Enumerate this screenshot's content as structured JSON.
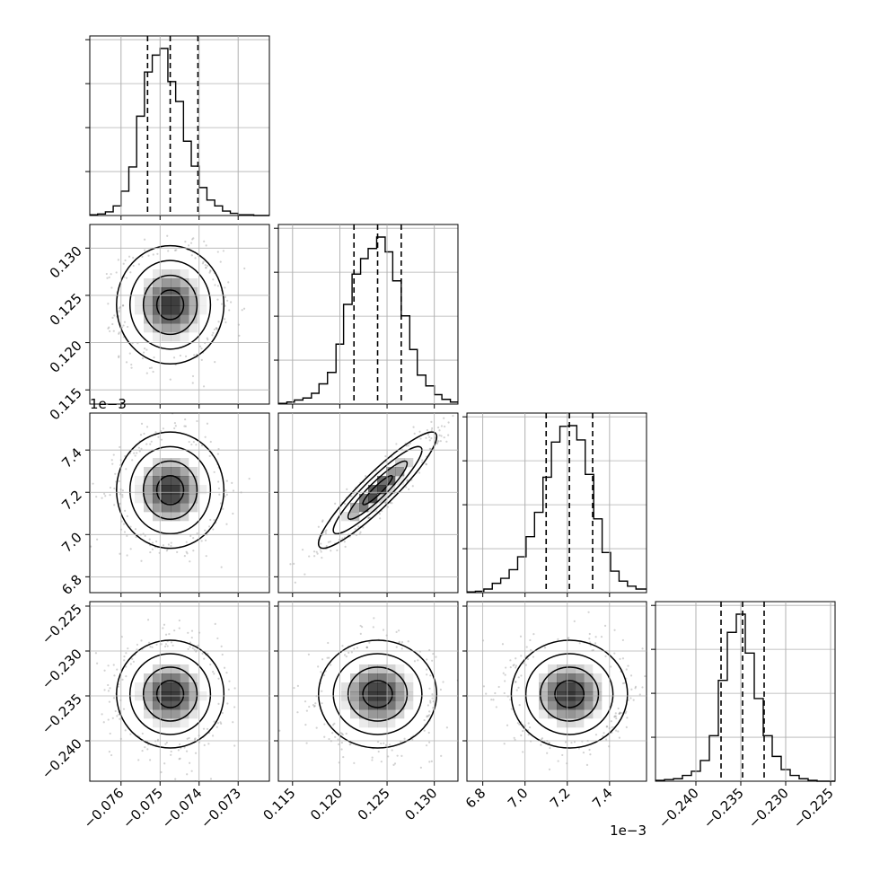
{
  "chart_data": {
    "type": "corner",
    "title": "",
    "grid": true,
    "parameters": [
      {
        "name": "",
        "range": [
          -0.0768,
          -0.0722
        ],
        "ticks": [
          -0.076,
          -0.075,
          -0.074,
          -0.073
        ],
        "tick_labels": [
          "−0.076",
          "−0.075",
          "−0.074",
          "−0.073"
        ],
        "offset_text": "",
        "quantiles": [
          -0.07532,
          -0.07474,
          -0.07403
        ],
        "median": -0.07474,
        "stdev": 0.00055
      },
      {
        "name": "",
        "range": [
          0.1135,
          0.1325
        ],
        "ticks": [
          0.115,
          0.12,
          0.125,
          0.13
        ],
        "tick_labels": [
          "0.115",
          "0.120",
          "0.125",
          "0.130"
        ],
        "offset_text": "",
        "quantiles": [
          0.1215,
          0.124,
          0.1265
        ],
        "median": 0.124,
        "stdev": 0.0025
      },
      {
        "name": "",
        "range": [
          6.725,
          7.575
        ],
        "ticks": [
          6.8,
          7.0,
          7.2,
          7.4
        ],
        "tick_labels": [
          "6.8",
          "7.0",
          "7.2",
          "7.4"
        ],
        "offset_text": "1e−3",
        "quantiles": [
          7.1,
          7.21,
          7.32
        ],
        "median": 7.21,
        "stdev": 0.11
      },
      {
        "name": "",
        "range": [
          -0.2445,
          -0.2245
        ],
        "ticks": [
          -0.24,
          -0.235,
          -0.23,
          -0.225
        ],
        "tick_labels": [
          "−0.240",
          "−0.235",
          "−0.230",
          "−0.225"
        ],
        "offset_text": "",
        "quantiles": [
          -0.2372,
          -0.2348,
          -0.2324
        ],
        "median": -0.2348,
        "stdev": 0.0024
      }
    ],
    "histograms": [
      {
        "param": 0,
        "bin_edges": [
          -0.0768,
          -0.0766,
          -0.0764,
          -0.0762,
          -0.076,
          -0.0758,
          -0.0756,
          -0.0754,
          -0.0752,
          -0.075,
          -0.0748,
          -0.0746,
          -0.0744,
          -0.0742,
          -0.074,
          -0.0738,
          -0.0736,
          -0.0734,
          -0.0732,
          -0.073,
          -0.0728,
          -0.0726,
          -0.0724,
          -0.0722
        ],
        "counts": [
          1,
          2,
          5,
          13,
          33,
          66,
          135,
          195,
          218,
          227,
          182,
          155,
          101,
          67,
          38,
          21,
          13,
          6,
          3,
          1,
          1,
          0,
          0
        ]
      },
      {
        "param": 1,
        "bin_edges": [
          0.1135,
          0.1144,
          0.1152,
          0.1161,
          0.117,
          0.1178,
          0.1187,
          0.1196,
          0.1204,
          0.1213,
          0.1222,
          0.123,
          0.1239,
          0.1248,
          0.1256,
          0.1265,
          0.1274,
          0.1282,
          0.1291,
          0.13,
          0.1308,
          0.1317,
          0.1325
        ],
        "counts": [
          1,
          3,
          6,
          9,
          16,
          30,
          47,
          89,
          148,
          193,
          216,
          231,
          248,
          226,
          183,
          131,
          81,
          43,
          27,
          14,
          7,
          3
        ]
      },
      {
        "param": 2,
        "bin_edges": [
          6.725,
          6.765,
          6.805,
          6.845,
          6.885,
          6.925,
          6.965,
          7.005,
          7.045,
          7.085,
          7.125,
          7.165,
          7.205,
          7.245,
          7.285,
          7.325,
          7.365,
          7.405,
          7.445,
          7.485,
          7.525,
          7.575
        ],
        "counts": [
          1,
          2,
          5,
          13,
          20,
          32,
          50,
          78,
          112,
          161,
          210,
          232,
          233,
          213,
          165,
          103,
          56,
          30,
          16,
          9,
          5
        ]
      },
      {
        "param": 3,
        "bin_edges": [
          -0.2445,
          -0.2435,
          -0.2425,
          -0.2415,
          -0.2405,
          -0.2395,
          -0.2385,
          -0.2375,
          -0.2365,
          -0.2355,
          -0.2345,
          -0.2335,
          -0.2325,
          -0.2315,
          -0.2305,
          -0.2295,
          -0.2285,
          -0.2275,
          -0.2265,
          -0.2255,
          -0.2245
        ],
        "counts": [
          1,
          2,
          3,
          7,
          12,
          25,
          55,
          122,
          180,
          202,
          155,
          100,
          55,
          30,
          14,
          7,
          3,
          1,
          0,
          0
        ]
      }
    ],
    "pairs": [
      {
        "x_param": 0,
        "y_param": 1,
        "correlation": 0.0
      },
      {
        "x_param": 0,
        "y_param": 2,
        "correlation": 0.0
      },
      {
        "x_param": 1,
        "y_param": 2,
        "correlation": 0.92
      },
      {
        "x_param": 0,
        "y_param": 3,
        "correlation": 0.0
      },
      {
        "x_param": 1,
        "y_param": 3,
        "correlation": 0.0
      },
      {
        "x_param": 2,
        "y_param": 3,
        "correlation": 0.0
      }
    ],
    "contour_levels_sigma": [
      0.5,
      1.0,
      1.5,
      2.0
    ],
    "colors": {
      "line": "#000000",
      "grid": "#b0b0b0",
      "points": "#7f7f7f",
      "density": "#000000"
    }
  }
}
